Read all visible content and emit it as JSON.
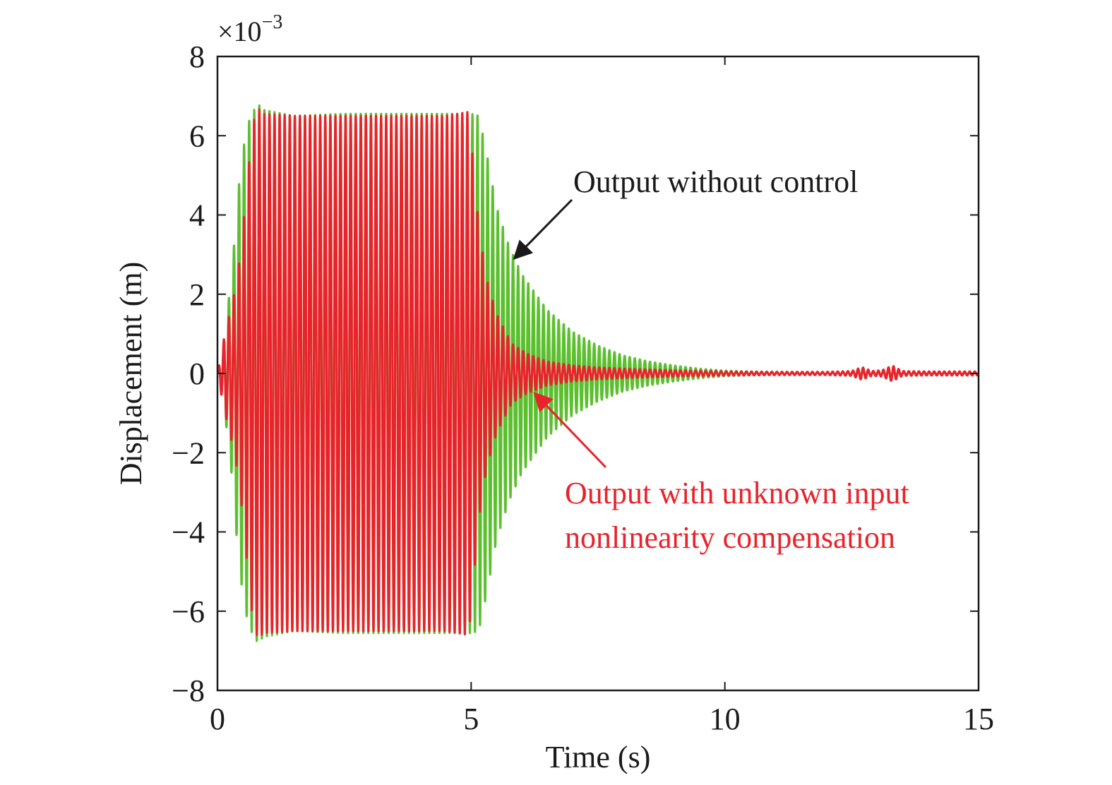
{
  "chart_data": {
    "type": "line",
    "title": "",
    "xlabel": "Time (s)",
    "ylabel": "Displacement (m)",
    "y_multiplier": "×10",
    "y_multiplier_exp": "−3",
    "xlim": [
      0,
      15
    ],
    "ylim": [
      -8,
      8
    ],
    "x_ticks": [
      0,
      5,
      10,
      15
    ],
    "x_tick_labels": [
      "0",
      "5",
      "10",
      "15"
    ],
    "y_ticks": [
      -8,
      -6,
      -4,
      -2,
      0,
      2,
      4,
      6,
      8
    ],
    "y_tick_labels": [
      "−8",
      "−6",
      "−4",
      "−2",
      "0",
      "2",
      "4",
      "6",
      "8"
    ],
    "grid": false,
    "legend": "none",
    "oscillation_frequency_hz": 10,
    "series": [
      {
        "key": "without_control",
        "color": "#5cbf2f",
        "envelope_t": [
          0,
          0.1,
          0.2,
          0.3,
          0.4,
          0.5,
          0.6,
          0.7,
          0.8,
          0.9,
          1.5,
          2.5,
          3.5,
          4.5,
          5.0,
          5.15,
          5.3,
          5.5,
          5.75,
          6.0,
          6.5,
          7.0,
          7.5,
          8.0,
          8.5,
          9.0,
          9.5,
          10.0,
          10.5,
          11.0,
          12.0,
          13.0,
          15.0
        ],
        "envelope_a": [
          0,
          0.6,
          1.6,
          2.8,
          4.5,
          5.6,
          6.3,
          6.6,
          6.8,
          6.65,
          6.5,
          6.55,
          6.55,
          6.55,
          6.55,
          6.5,
          5.6,
          4.2,
          3.2,
          2.5,
          1.6,
          1.05,
          0.7,
          0.45,
          0.3,
          0.2,
          0.12,
          0.07,
          0.05,
          0.04,
          0.03,
          0.02,
          0.01
        ]
      },
      {
        "key": "with_compensation",
        "color": "#e8232b",
        "envelope_t": [
          0,
          0.1,
          0.2,
          0.3,
          0.4,
          0.5,
          0.6,
          0.7,
          0.8,
          0.9,
          1.5,
          2.5,
          3.5,
          4.5,
          4.95,
          5.05,
          5.15,
          5.3,
          5.5,
          5.8,
          6.1,
          6.5,
          7.0,
          7.5,
          8.0,
          9.0,
          10.0,
          11.0,
          12.0,
          12.5,
          12.7,
          12.9,
          13.1,
          13.3,
          13.5,
          14.0,
          15.0
        ],
        "envelope_a": [
          0,
          0.7,
          1.3,
          1.8,
          2.5,
          3.6,
          5.0,
          6.3,
          6.7,
          6.55,
          6.5,
          6.5,
          6.5,
          6.5,
          6.6,
          5.2,
          3.7,
          2.4,
          1.5,
          0.75,
          0.5,
          0.3,
          0.2,
          0.15,
          0.12,
          0.08,
          0.05,
          0.04,
          0.04,
          0.06,
          0.16,
          0.06,
          0.08,
          0.2,
          0.06,
          0.05,
          0.05
        ]
      }
    ],
    "annotations": [
      {
        "key": "without_control",
        "text": "Output without control",
        "color": "#1a1a1a",
        "arrow_to": [
          5.85,
          2.9
        ]
      },
      {
        "key": "with_compensation_line1",
        "text": "Output with unknown input",
        "color": "#e8232b",
        "arrow_to": [
          6.25,
          -0.5
        ]
      },
      {
        "key": "with_compensation_line2",
        "text": "nonlinearity compensation",
        "color": "#e8232b"
      }
    ]
  }
}
